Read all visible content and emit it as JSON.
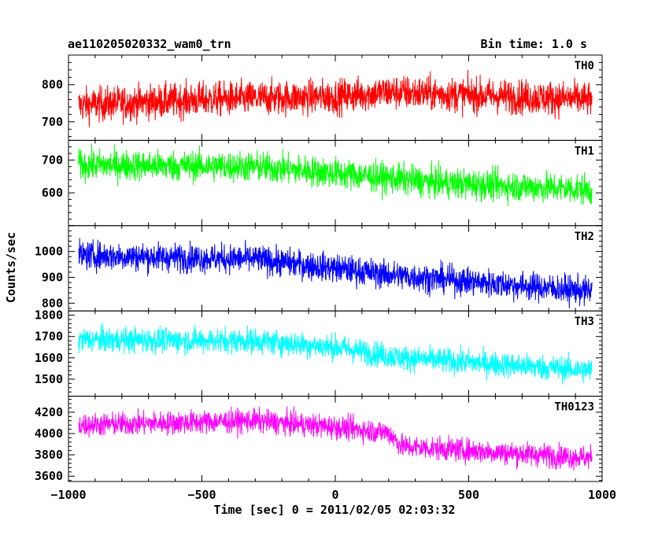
{
  "title_left": "ae110205020332_wam0_trn",
  "title_right": "Bin time: 1.0 s",
  "chart_data": {
    "type": "line",
    "xlabel": "Time [sec] 0 = 2011/02/05 02:03:32",
    "ylabel": "Counts/sec",
    "xlim": [
      -1000,
      1000
    ],
    "xticks": [
      -1000,
      -500,
      0,
      500,
      1000
    ],
    "x_range": [
      -962,
      962
    ],
    "bin_time_s": 1.0,
    "panels": [
      {
        "name": "TH0",
        "color": "#ff0000",
        "ylim": [
          650,
          880
        ],
        "yticks": [
          700,
          800
        ],
        "trend": [
          [
            -962,
            745
          ],
          [
            -500,
            760
          ],
          [
            0,
            768
          ],
          [
            200,
            780
          ],
          [
            962,
            760
          ]
        ],
        "noise": 55
      },
      {
        "name": "TH1",
        "color": "#00ff00",
        "ylim": [
          500,
          760
        ],
        "yticks": [
          600,
          700
        ],
        "trend": [
          [
            -962,
            685
          ],
          [
            -300,
            680
          ],
          [
            0,
            660
          ],
          [
            400,
            630
          ],
          [
            962,
            610
          ]
        ],
        "noise": 55
      },
      {
        "name": "TH2",
        "color": "#0000ff",
        "ylim": [
          770,
          1100
        ],
        "yticks": [
          800,
          900,
          1000
        ],
        "trend": [
          [
            -962,
            985
          ],
          [
            -300,
            970
          ],
          [
            0,
            935
          ],
          [
            200,
            910
          ],
          [
            962,
            845
          ]
        ],
        "noise": 65
      },
      {
        "name": "TH3",
        "color": "#00ffff",
        "ylim": [
          1420,
          1820
        ],
        "yticks": [
          1500,
          1600,
          1700,
          1800
        ],
        "trend": [
          [
            -962,
            1685
          ],
          [
            -300,
            1680
          ],
          [
            0,
            1650
          ],
          [
            250,
            1600
          ],
          [
            962,
            1540
          ]
        ],
        "noise": 70
      },
      {
        "name": "TH0123",
        "color": "#ff00ff",
        "ylim": [
          3550,
          4350
        ],
        "yticks": [
          3600,
          3800,
          4000,
          4200
        ],
        "trend": [
          [
            -962,
            4080
          ],
          [
            -300,
            4120
          ],
          [
            0,
            4060
          ],
          [
            200,
            4010
          ],
          [
            250,
            3880
          ],
          [
            962,
            3770
          ]
        ],
        "noise": 130
      }
    ]
  }
}
